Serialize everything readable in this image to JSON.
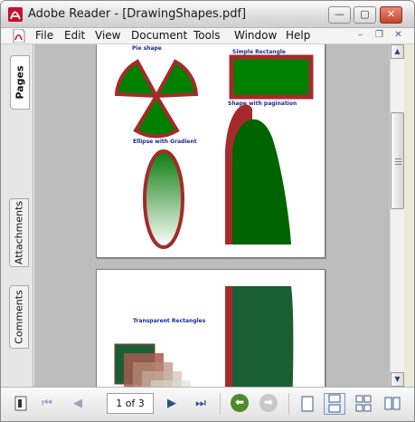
{
  "window": {
    "title": "Adobe Reader - [DrawingShapes.pdf]",
    "buttons": {
      "minimize": "—",
      "maximize": "▢",
      "close": "✕"
    }
  },
  "menu": {
    "items": [
      "File",
      "Edit",
      "View",
      "Document",
      "Tools",
      "Window",
      "Help"
    ],
    "mdi": {
      "minimize": "–",
      "restore": "❐",
      "close": "✕"
    }
  },
  "side_tabs": {
    "pages": "Pages",
    "attachments": "Attachments",
    "comments": "Comments"
  },
  "document": {
    "page1": {
      "pie_label": "Pie shape",
      "rect_label": "Simple Rectangle",
      "pagination_label": "Shape with pagination",
      "ellipse_label": "Ellipse with Gradient"
    },
    "page2": {
      "transparent_label": "Transparent Rectangles"
    }
  },
  "statusbar": {
    "page_display": "1 of 3",
    "first_page": "⏮",
    "prev_page": "◀",
    "next_page": "▶",
    "last_page": "⏭",
    "back_view": "⬅",
    "forward_view": "➡"
  },
  "colors": {
    "shape_green": "#008000",
    "shape_border": "#a52a2a",
    "pagination_green": "#006400",
    "title_blue": "#1c2a8c"
  }
}
